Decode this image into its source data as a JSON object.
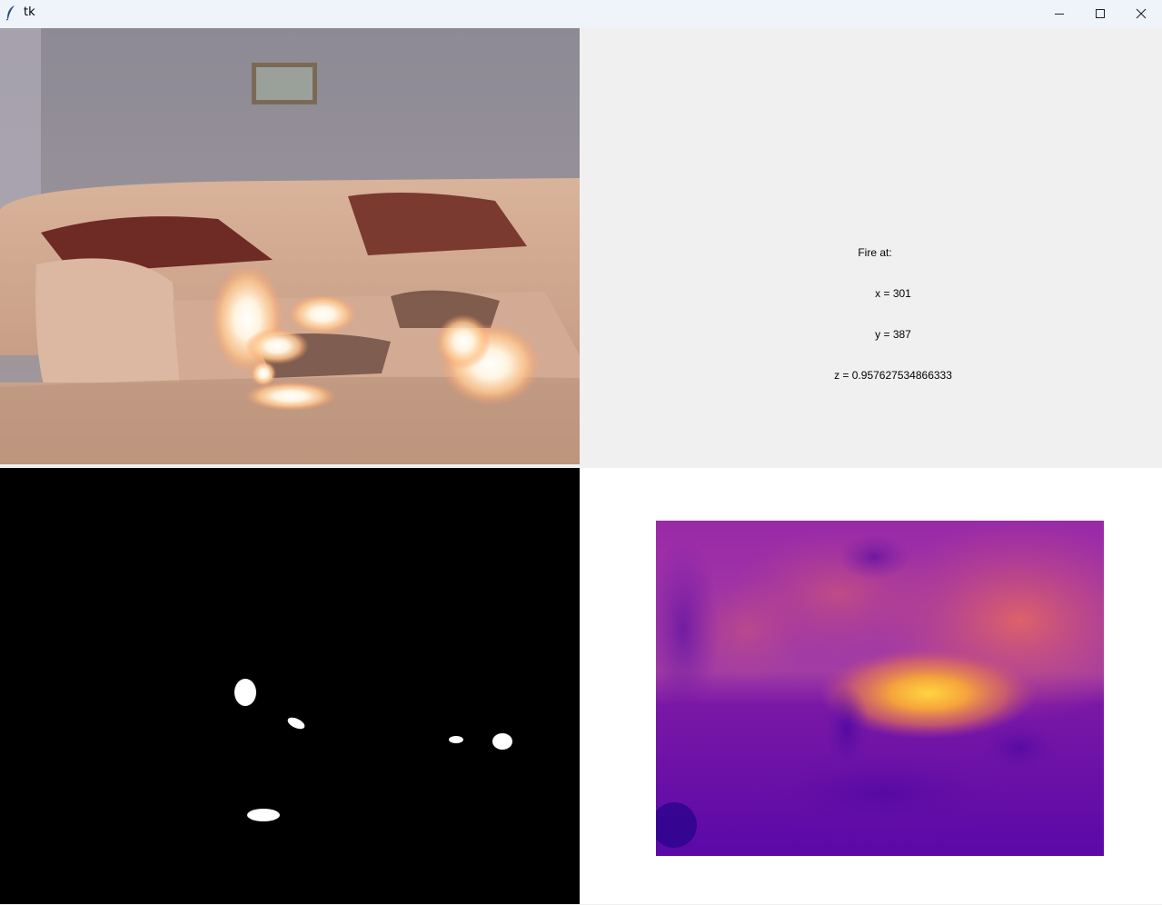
{
  "window": {
    "title": "tk",
    "controls": {
      "minimize_icon": "minimize-icon",
      "maximize_icon": "maximize-icon",
      "close_icon": "close-icon"
    }
  },
  "fire_info": {
    "heading": "Fire at:",
    "x_line": "x = 301",
    "y_line": "y = 387",
    "z_line": "z = 0.957627534866333"
  },
  "panels": {
    "video": "camera-frame",
    "mask": "fire-mask",
    "depth": "depth-map"
  },
  "colors": {
    "titlebar": "#eef4f9",
    "panel_bg": "#f0f0f0",
    "mask_bg": "#000000",
    "mask_fg": "#ffffff"
  }
}
